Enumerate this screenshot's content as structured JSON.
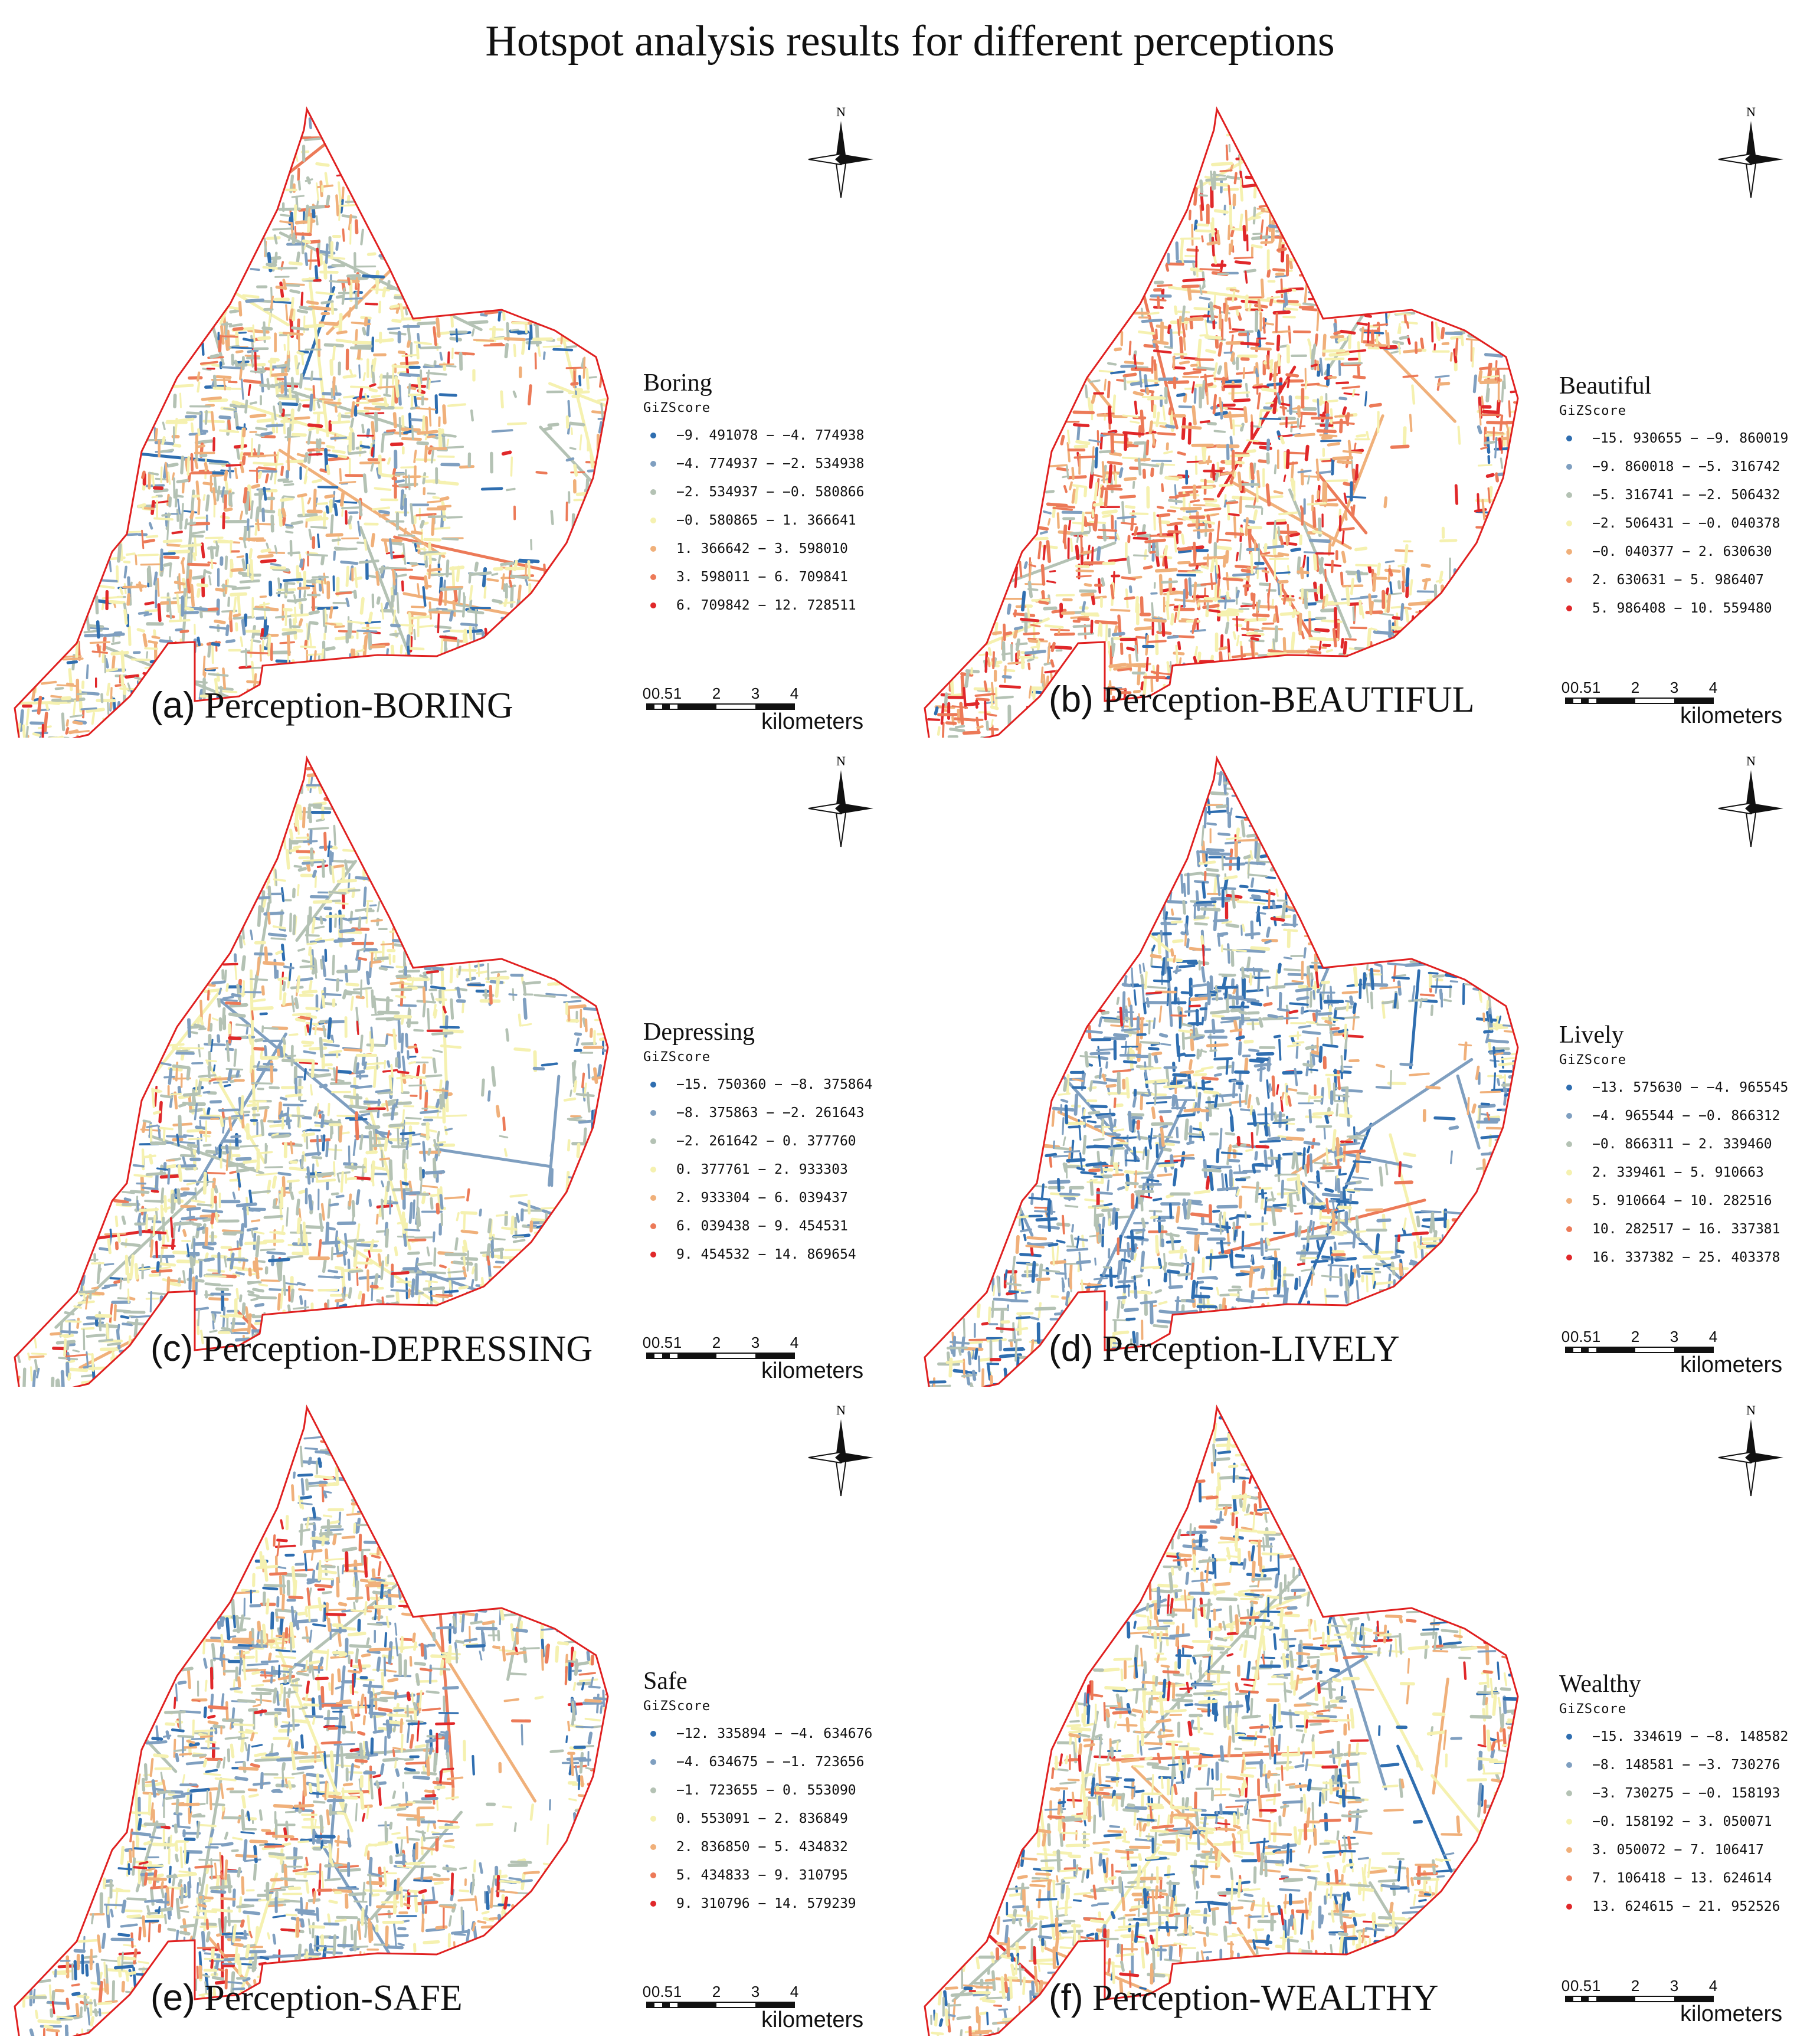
{
  "title": "Hotspot analysis results for different perceptions",
  "colors": {
    "boundary": "#e02020",
    "classes": [
      "#2f6eb0",
      "#7f9fc0",
      "#b4c2b4",
      "#f5f1b0",
      "#f0b07a",
      "#ec7a58",
      "#e0282a"
    ]
  },
  "common": {
    "gizscore_label": "GiZScore",
    "north_label": "N",
    "scale_ticks": [
      "0",
      "0.5",
      "1",
      "2",
      "3",
      "4"
    ],
    "scale_unit": "kilometers"
  },
  "panels": [
    {
      "letter": "(a)",
      "caption": "Perception-BORING",
      "legend_title": "Boring",
      "classes": [
        "−9. 491078 − −4. 774938",
        "−4. 774937 − −2. 534938",
        "−2. 534937 − −0. 580866",
        "−0. 580865 − 1. 366641",
        "1. 366642 − 3. 598010",
        "3. 598011 − 6. 709841",
        "6. 709842 − 12. 728511"
      ]
    },
    {
      "letter": "(b)",
      "caption": "Perception-BEAUTIFUL",
      "legend_title": "Beautiful",
      "classes": [
        "−15. 930655 − −9. 860019",
        "−9. 860018 − −5. 316742",
        "−5. 316741 − −2. 506432",
        "−2. 506431 − −0. 040378",
        "−0. 040377 − 2. 630630",
        "2. 630631 − 5. 986407",
        "5. 986408 − 10. 559480"
      ]
    },
    {
      "letter": "(c)",
      "caption": "Perception-DEPRESSING",
      "legend_title": "Depressing",
      "classes": [
        "−15. 750360 − −8. 375864",
        "−8. 375863 − −2. 261643",
        "−2. 261642 − 0. 377760",
        "0. 377761 − 2. 933303",
        "2. 933304 − 6. 039437",
        "6. 039438 − 9. 454531",
        "9. 454532 − 14. 869654"
      ]
    },
    {
      "letter": "(d)",
      "caption": "Perception-LIVELY",
      "legend_title": "Lively",
      "classes": [
        "−13. 575630 − −4. 965545",
        "−4. 965544 − −0. 866312",
        "−0. 866311 − 2. 339460",
        "2. 339461 − 5. 910663",
        "5. 910664 − 10. 282516",
        "10. 282517 − 16. 337381",
        "16. 337382 − 25. 403378"
      ]
    },
    {
      "letter": "(e)",
      "caption": "Perception-SAFE",
      "legend_title": "Safe",
      "classes": [
        "−12. 335894 − −4. 634676",
        "−4. 634675 − −1. 723656",
        "−1. 723655 − 0. 553090",
        "0. 553091 − 2. 836849",
        "2. 836850 − 5. 434832",
        "5. 434833 − 9. 310795",
        "9. 310796 − 14. 579239"
      ]
    },
    {
      "letter": "(f)",
      "caption": "Perception-WEALTHY",
      "legend_title": "Wealthy",
      "classes": [
        "−15. 334619 − −8. 148582",
        "−8. 148581 − −3. 730276",
        "−3. 730275 − −0. 158193",
        "−0. 158192 − 3. 050071",
        "3. 050072 − 7. 106417",
        "7. 106418 − 13. 624614",
        "13. 624615 − 21. 952526"
      ]
    }
  ]
}
